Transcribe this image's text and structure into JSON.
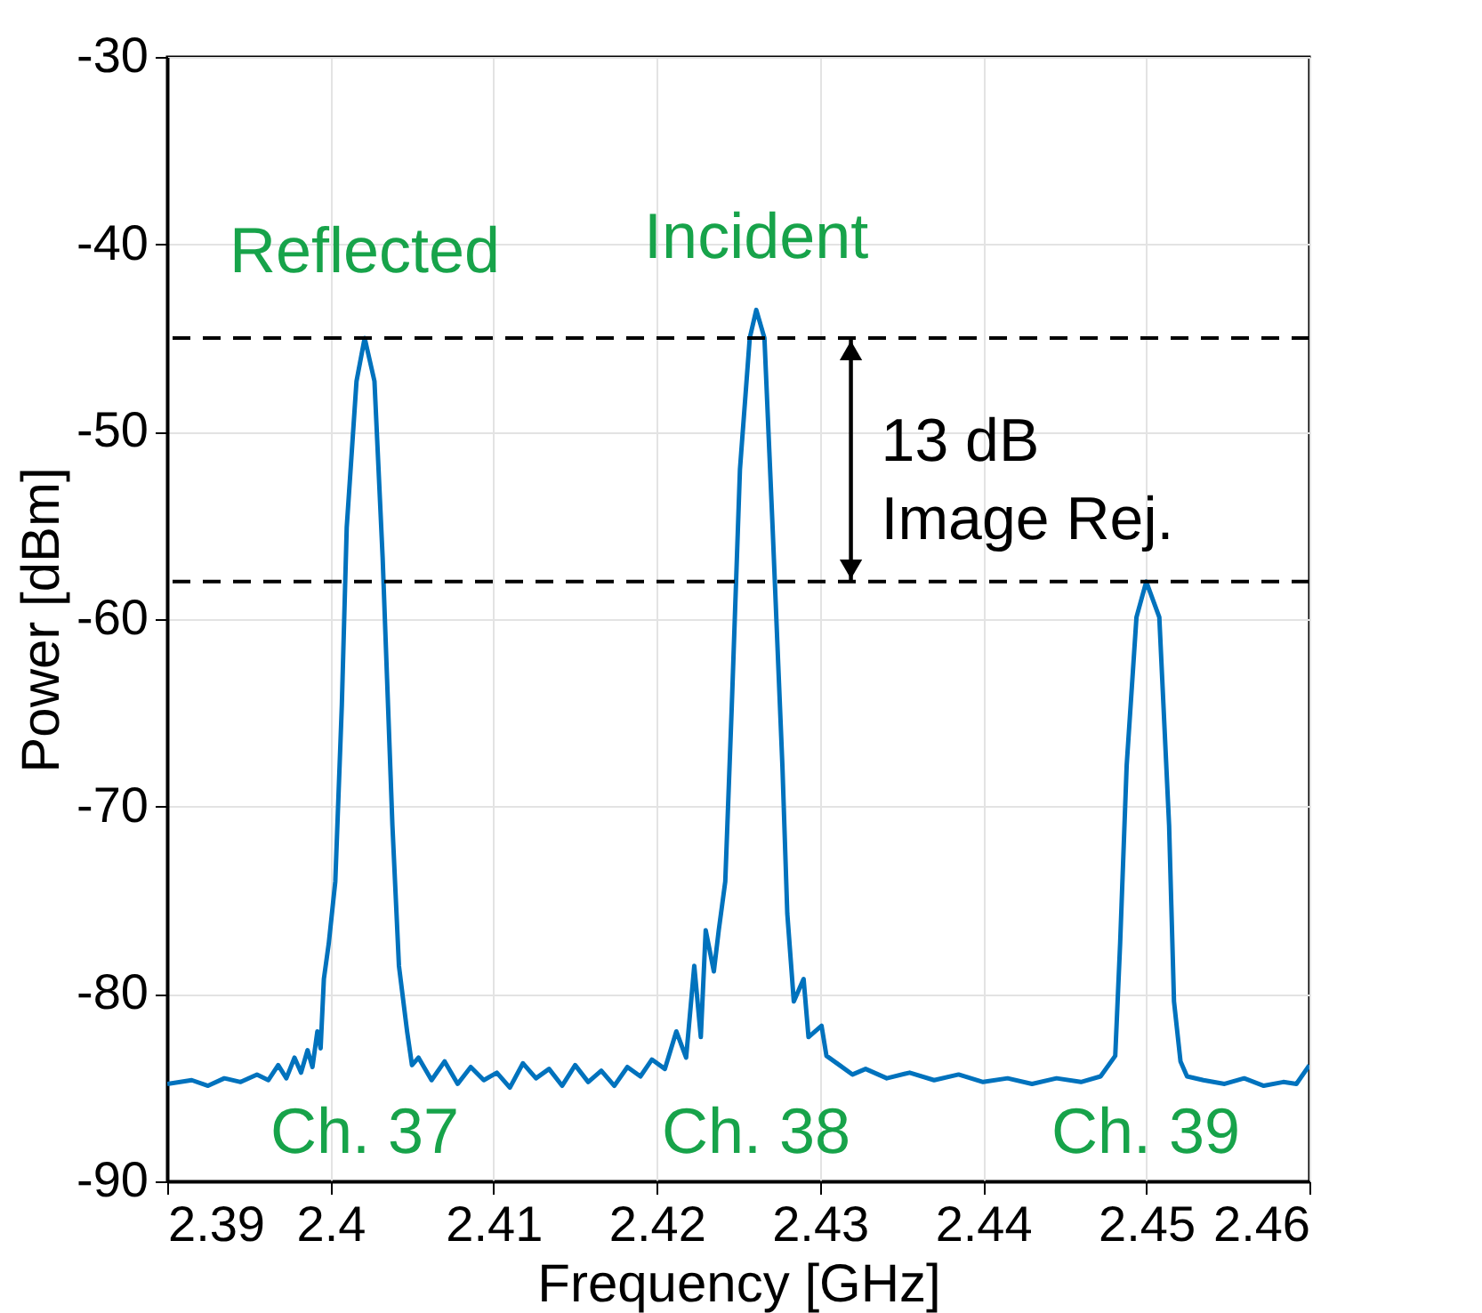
{
  "chart_data": {
    "type": "line",
    "xlabel": "Frequency [GHz]",
    "ylabel": "Power [dBm]",
    "xlim": [
      2.39,
      2.46
    ],
    "xticks": [
      2.39,
      2.4,
      2.41,
      2.42,
      2.43,
      2.44,
      2.45,
      2.46
    ],
    "ylim": [
      -90,
      -30
    ],
    "yticks": [
      -90,
      -80,
      -70,
      -60,
      -50,
      -40,
      -30
    ],
    "grid": true,
    "marker": "none",
    "line_style": "solid",
    "series": [
      {
        "color": "#0072bd",
        "x": [
          2.39,
          2.3915,
          2.3925,
          2.3935,
          2.3945,
          2.3955,
          2.3962,
          2.3968,
          2.3973,
          2.3978,
          2.3982,
          2.3986,
          2.3989,
          2.3992,
          2.3994,
          2.3996,
          2.3999,
          2.4003,
          2.4007,
          2.401,
          2.4016,
          2.4021,
          2.4027,
          2.4032,
          2.4038,
          2.4042,
          2.4047,
          2.405,
          2.4054,
          2.4062,
          2.407,
          2.4078,
          2.4086,
          2.4094,
          2.4102,
          2.411,
          2.4118,
          2.4126,
          2.4134,
          2.4142,
          2.415,
          2.4158,
          2.4166,
          2.4174,
          2.4182,
          2.419,
          2.4197,
          2.4205,
          2.4212,
          2.4218,
          2.4223,
          2.4227,
          2.423,
          2.4235,
          2.4238,
          2.4242,
          2.4246,
          2.4251,
          2.4257,
          2.4261,
          2.4266,
          2.4271,
          2.4277,
          2.428,
          2.4284,
          2.429,
          2.4293,
          2.4301,
          2.4304,
          2.4312,
          2.432,
          2.4328,
          2.4341,
          2.4355,
          2.437,
          2.4385,
          2.44,
          2.4415,
          2.443,
          2.4445,
          2.446,
          2.4472,
          2.4481,
          2.4484,
          2.4488,
          2.4494,
          2.45,
          2.4508,
          2.4514,
          2.4517,
          2.4521,
          2.4525,
          2.4535,
          2.4548,
          2.456,
          2.4572,
          2.4584,
          2.4592,
          2.46
        ],
        "values": [
          -84.8,
          -84.6,
          -84.9,
          -84.5,
          -84.7,
          -84.3,
          -84.6,
          -83.8,
          -84.5,
          -83.4,
          -84.2,
          -83.0,
          -83.9,
          -82.0,
          -82.9,
          -79.2,
          -77.3,
          -74.0,
          -64.6,
          -55.1,
          -47.3,
          -45.0,
          -47.3,
          -56.7,
          -71.0,
          -78.5,
          -82.0,
          -83.8,
          -83.4,
          -84.6,
          -83.6,
          -84.8,
          -83.9,
          -84.6,
          -84.2,
          -85.0,
          -83.7,
          -84.5,
          -84.0,
          -84.9,
          -83.8,
          -84.7,
          -84.1,
          -84.9,
          -83.9,
          -84.4,
          -83.5,
          -84.0,
          -82.0,
          -83.4,
          -78.5,
          -82.3,
          -76.6,
          -78.8,
          -76.6,
          -74.0,
          -64.6,
          -52.0,
          -45.0,
          -43.5,
          -45.0,
          -55.1,
          -67.8,
          -75.7,
          -80.4,
          -79.2,
          -82.3,
          -81.7,
          -83.3,
          -83.8,
          -84.3,
          -84.0,
          -84.5,
          -84.2,
          -84.6,
          -84.3,
          -84.7,
          -84.5,
          -84.8,
          -84.5,
          -84.7,
          -84.4,
          -83.3,
          -77.3,
          -67.8,
          -59.9,
          -58.0,
          -59.9,
          -71.0,
          -80.4,
          -83.6,
          -84.4,
          -84.6,
          -84.8,
          -84.5,
          -84.9,
          -84.7,
          -84.8,
          -83.8
        ]
      }
    ],
    "ref_lines": [
      {
        "axis": "y",
        "value": -45,
        "color": "#000000",
        "line_style": "dashed"
      },
      {
        "axis": "y",
        "value": -58,
        "color": "#000000",
        "line_style": "dashed"
      }
    ],
    "annotations": [
      "Reflected",
      {
        "text": "Incident",
        "x": 2.4261,
        "y": -43.5
      },
      "Ch. 37",
      "Ch. 38",
      "Ch. 39",
      {
        "text": "13 dB\nImage Rej.",
        "x": 2.4319,
        "y": -45
      }
    ]
  }
}
